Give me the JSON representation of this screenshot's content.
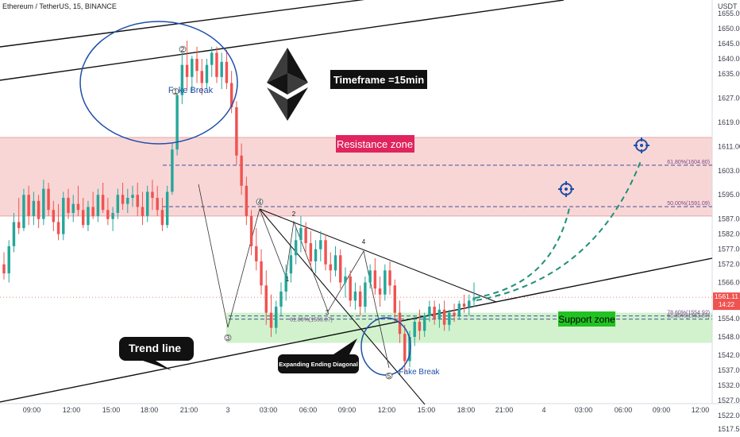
{
  "chart_data": {
    "type": "candlestick",
    "header": "Ethereum / TetherUS, 15, BINANCE",
    "currency": "USDT",
    "y_range": [
      1515,
      1658
    ],
    "y_ticks": [
      1517.5,
      1522.0,
      1527.0,
      1532.0,
      1537.0,
      1542.0,
      1548.0,
      1554.0,
      1560.0,
      1566.0,
      1572.0,
      1577.0,
      1582.0,
      1587.0,
      1595.0,
      1603.0,
      1611.0,
      1619.0,
      1627.0,
      1635.0,
      1640.0,
      1645.0,
      1650.0,
      1655.0
    ],
    "y_tick_labels": [
      "1517.50",
      "1522.00",
      "1527.00",
      "1532.00",
      "1537.00",
      "1542.00",
      "1548.00",
      "1554.00",
      "1560.00",
      "1566.00",
      "1572.00",
      "1577.00",
      "1582.00",
      "1587.00",
      "1595.00",
      "1603.00",
      "1611.00",
      "1619.00",
      "1627.00",
      "1635.00",
      "1640.00",
      "1645.00",
      "1650.00",
      "1655.00"
    ],
    "x_tick_labels": [
      "09:00",
      "12:00",
      "15:00",
      "18:00",
      "21:00",
      "3",
      "03:00",
      "06:00",
      "09:00",
      "12:00",
      "15:00",
      "18:00",
      "21:00",
      "4",
      "03:00",
      "06:00",
      "09:00",
      "12:00"
    ],
    "last_price": "1561.11",
    "countdown": "14:22",
    "colors": {
      "up": "#26a69a",
      "down": "#ef5350",
      "resistance": "#f7c8c8",
      "support": "#c9f0c4",
      "projection": "#1f8f77",
      "circle": "#1e4fa8",
      "fib": "#7a4b8a"
    },
    "zones": {
      "resistance": {
        "label": "Resistance zone",
        "from": 1588,
        "to": 1614
      },
      "support": {
        "label": "Support zone",
        "from": 1546,
        "to": 1556
      }
    },
    "fib_levels": [
      {
        "label": "61.80%(1604.80)",
        "price": 1604.8
      },
      {
        "label": "50.00%(1591.09)",
        "price": 1591.09
      },
      {
        "label": "78.60%(1554.92)",
        "price": 1554.92
      },
      {
        "label": "61.80%(1553.87)",
        "price": 1553.87
      }
    ],
    "annotations": {
      "timeframe": "Timeframe =15min",
      "fake_break_top": "Fake Break",
      "fake_break_bottom": "Fake Break",
      "trend_line": "Trend line",
      "diagonal": "Expanding Ending Diagonal"
    },
    "wave_labels": [
      "1",
      "2",
      "3",
      "4",
      "1",
      "2",
      "3",
      "4",
      "5"
    ],
    "series": [
      {
        "ohlc": [
          [
            1572,
            1576,
            1567,
            1569
          ],
          [
            1569,
            1580,
            1566,
            1578
          ],
          [
            1578,
            1589,
            1576,
            1586
          ],
          [
            1586,
            1594,
            1582,
            1584
          ],
          [
            1584,
            1597,
            1583,
            1595
          ],
          [
            1595,
            1598,
            1585,
            1588
          ],
          [
            1588,
            1596,
            1585,
            1593
          ],
          [
            1593,
            1595,
            1584,
            1587
          ],
          [
            1587,
            1600,
            1585,
            1597
          ],
          [
            1597,
            1599,
            1588,
            1590
          ],
          [
            1590,
            1593,
            1583,
            1586
          ],
          [
            1586,
            1592,
            1580,
            1582
          ],
          [
            1582,
            1596,
            1580,
            1594
          ],
          [
            1594,
            1597,
            1587,
            1589
          ],
          [
            1589,
            1595,
            1586,
            1592
          ],
          [
            1592,
            1598,
            1588,
            1590
          ],
          [
            1590,
            1594,
            1584,
            1585
          ],
          [
            1585,
            1593,
            1583,
            1591
          ],
          [
            1591,
            1596,
            1587,
            1588
          ],
          [
            1588,
            1597,
            1586,
            1595
          ],
          [
            1595,
            1599,
            1589,
            1590
          ],
          [
            1590,
            1594,
            1585,
            1587
          ],
          [
            1587,
            1591,
            1583,
            1589
          ],
          [
            1589,
            1597,
            1587,
            1595
          ],
          [
            1595,
            1599,
            1590,
            1592
          ],
          [
            1592,
            1597,
            1589,
            1594
          ],
          [
            1594,
            1598,
            1591,
            1595
          ],
          [
            1595,
            1599,
            1588,
            1591
          ],
          [
            1591,
            1596,
            1585,
            1588
          ],
          [
            1588,
            1598,
            1586,
            1596
          ],
          [
            1596,
            1600,
            1590,
            1594
          ],
          [
            1594,
            1598,
            1588,
            1590
          ],
          [
            1590,
            1594,
            1583,
            1585
          ],
          [
            1585,
            1598,
            1584,
            1596
          ],
          [
            1596,
            1612,
            1595,
            1610
          ],
          [
            1610,
            1630,
            1608,
            1628
          ],
          [
            1628,
            1642,
            1625,
            1638
          ],
          [
            1638,
            1646,
            1630,
            1634
          ],
          [
            1634,
            1641,
            1629,
            1640
          ],
          [
            1640,
            1644,
            1632,
            1636
          ],
          [
            1636,
            1640,
            1628,
            1632
          ],
          [
            1632,
            1640,
            1630,
            1638
          ],
          [
            1638,
            1644,
            1634,
            1642
          ],
          [
            1642,
            1644,
            1632,
            1634
          ],
          [
            1634,
            1642,
            1630,
            1639
          ],
          [
            1639,
            1643,
            1630,
            1632
          ],
          [
            1632,
            1636,
            1622,
            1624
          ],
          [
            1624,
            1626,
            1605,
            1608
          ],
          [
            1608,
            1612,
            1595,
            1598
          ],
          [
            1598,
            1601,
            1585,
            1588
          ],
          [
            1588,
            1590,
            1575,
            1578
          ],
          [
            1578,
            1584,
            1570,
            1573
          ],
          [
            1573,
            1577,
            1562,
            1565
          ],
          [
            1565,
            1570,
            1552,
            1556
          ],
          [
            1556,
            1562,
            1548,
            1551
          ],
          [
            1551,
            1560,
            1549,
            1558
          ],
          [
            1558,
            1566,
            1555,
            1563
          ],
          [
            1563,
            1572,
            1560,
            1569
          ],
          [
            1569,
            1578,
            1566,
            1575
          ],
          [
            1575,
            1584,
            1572,
            1580
          ],
          [
            1580,
            1588,
            1576,
            1584
          ],
          [
            1584,
            1586,
            1576,
            1579
          ],
          [
            1579,
            1583,
            1571,
            1573
          ],
          [
            1573,
            1580,
            1569,
            1577
          ],
          [
            1577,
            1583,
            1573,
            1580
          ],
          [
            1580,
            1582,
            1570,
            1572
          ],
          [
            1572,
            1576,
            1566,
            1570
          ],
          [
            1570,
            1578,
            1568,
            1575
          ],
          [
            1575,
            1577,
            1564,
            1566
          ],
          [
            1566,
            1571,
            1561,
            1568
          ],
          [
            1568,
            1570,
            1558,
            1560
          ],
          [
            1560,
            1566,
            1557,
            1563
          ],
          [
            1563,
            1565,
            1555,
            1558
          ],
          [
            1558,
            1568,
            1556,
            1566
          ],
          [
            1566,
            1572,
            1564,
            1570
          ],
          [
            1570,
            1574,
            1562,
            1564
          ],
          [
            1564,
            1568,
            1558,
            1562
          ],
          [
            1562,
            1572,
            1560,
            1570
          ],
          [
            1570,
            1573,
            1562,
            1565
          ],
          [
            1565,
            1567,
            1553,
            1556
          ],
          [
            1556,
            1560,
            1546,
            1549
          ],
          [
            1549,
            1552,
            1536,
            1540
          ],
          [
            1540,
            1550,
            1538,
            1548
          ],
          [
            1548,
            1555,
            1545,
            1553
          ],
          [
            1553,
            1557,
            1547,
            1550
          ],
          [
            1550,
            1556,
            1548,
            1555
          ],
          [
            1555,
            1560,
            1553,
            1558
          ],
          [
            1558,
            1560,
            1552,
            1554
          ],
          [
            1554,
            1559,
            1551,
            1557
          ],
          [
            1557,
            1560,
            1550,
            1552
          ],
          [
            1552,
            1557,
            1550,
            1556
          ],
          [
            1556,
            1559,
            1553,
            1555
          ],
          [
            1555,
            1560,
            1554,
            1559
          ],
          [
            1559,
            1562,
            1556,
            1558
          ],
          [
            1558,
            1562,
            1555,
            1560
          ],
          [
            1560,
            1566,
            1558,
            1561
          ]
        ]
      }
    ]
  }
}
